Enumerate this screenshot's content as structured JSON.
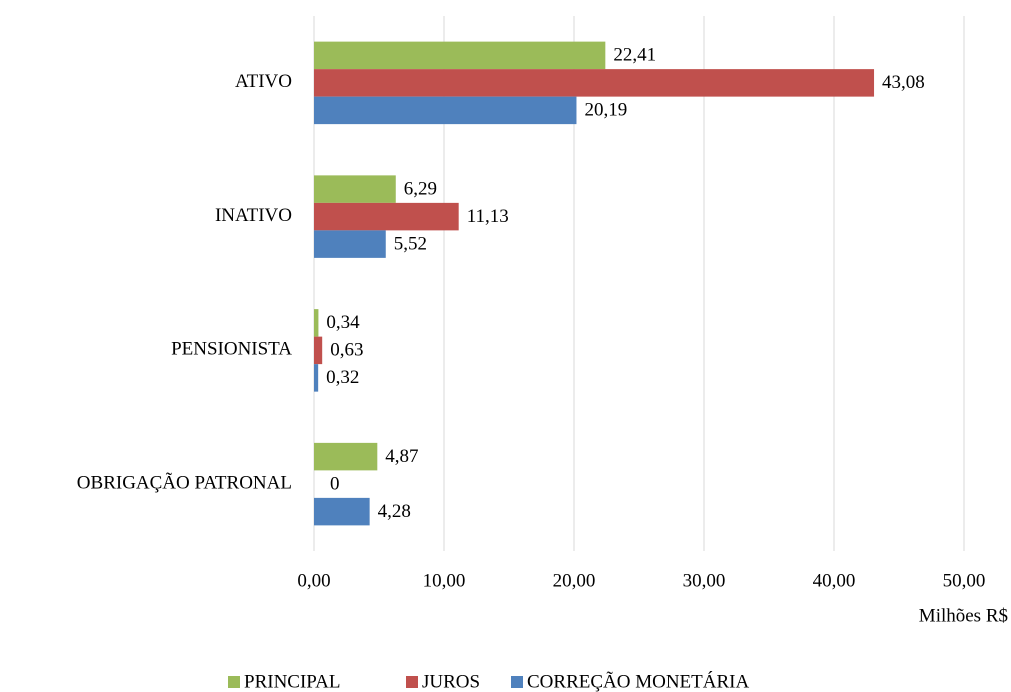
{
  "chart_data": {
    "type": "hbar",
    "categories": [
      "ATIVO",
      "INATIVO",
      "PENSIONISTA",
      "OBRIGAÇÃO PATRONAL"
    ],
    "series": [
      {
        "name": "PRINCIPAL",
        "color": "#9bbb59",
        "values": [
          22.41,
          6.29,
          0.34,
          4.87
        ],
        "value_labels": [
          "22,41",
          "6,29",
          "0,34",
          "4,87"
        ]
      },
      {
        "name": "JUROS",
        "color": "#c0504d",
        "values": [
          43.08,
          11.13,
          0.63,
          0
        ],
        "value_labels": [
          "43,08",
          "11,13",
          "0,63",
          "0"
        ]
      },
      {
        "name": "CORREÇÃO MONETÁRIA",
        "color": "#4f81bd",
        "values": [
          20.19,
          5.52,
          0.32,
          4.28
        ],
        "value_labels": [
          "20,19",
          "5,52",
          "0,32",
          "4,28"
        ]
      }
    ],
    "xlabel": "Milhões R$",
    "xlim": [
      0,
      50
    ],
    "xticks": [
      {
        "value": 0,
        "label": "0,00"
      },
      {
        "value": 10,
        "label": "10,00"
      },
      {
        "value": 20,
        "label": "20,00"
      },
      {
        "value": 30,
        "label": "30,00"
      },
      {
        "value": 40,
        "label": "40,00"
      },
      {
        "value": 50,
        "label": "50,00"
      }
    ],
    "grid": true,
    "legend": "bottom"
  }
}
